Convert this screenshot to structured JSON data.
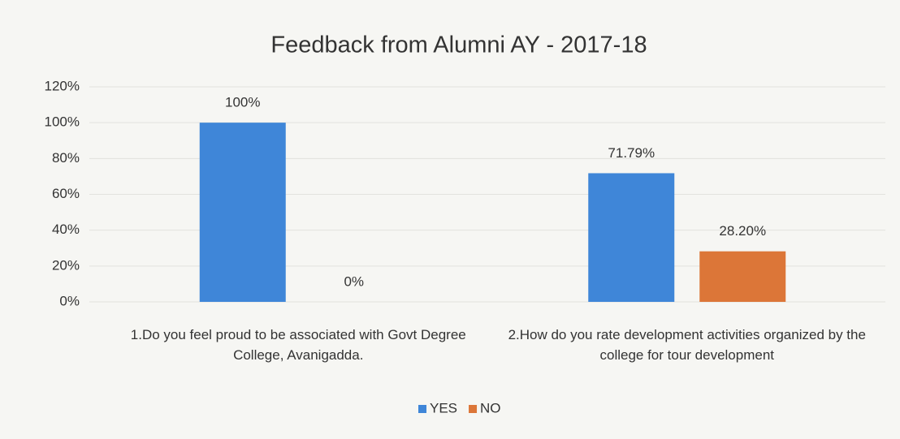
{
  "chart_data": {
    "type": "bar",
    "title": "Feedback from Alumni AY - 2017-18",
    "categories": [
      "1.Do you feel proud to be associated with Govt Degree College, Avanigadda.",
      "2.How do you rate development activities organized by the college for tour development"
    ],
    "series": [
      {
        "name": "YES",
        "color": "#3f86d8",
        "values": [
          100,
          71.79
        ],
        "value_labels": [
          "100%",
          "71.79%"
        ]
      },
      {
        "name": "NO",
        "color": "#dc7638",
        "values": [
          0,
          28.2
        ],
        "value_labels": [
          "0%",
          "28.20%"
        ]
      }
    ],
    "ylim": [
      0,
      120
    ],
    "yticks": [
      {
        "value": 0,
        "label": "0%"
      },
      {
        "value": 20,
        "label": "20%"
      },
      {
        "value": 40,
        "label": "40%"
      },
      {
        "value": 60,
        "label": "60%"
      },
      {
        "value": 80,
        "label": "80%"
      },
      {
        "value": 100,
        "label": "100%"
      },
      {
        "value": 120,
        "label": "120%"
      }
    ],
    "grid": true,
    "legend": "bottom"
  }
}
